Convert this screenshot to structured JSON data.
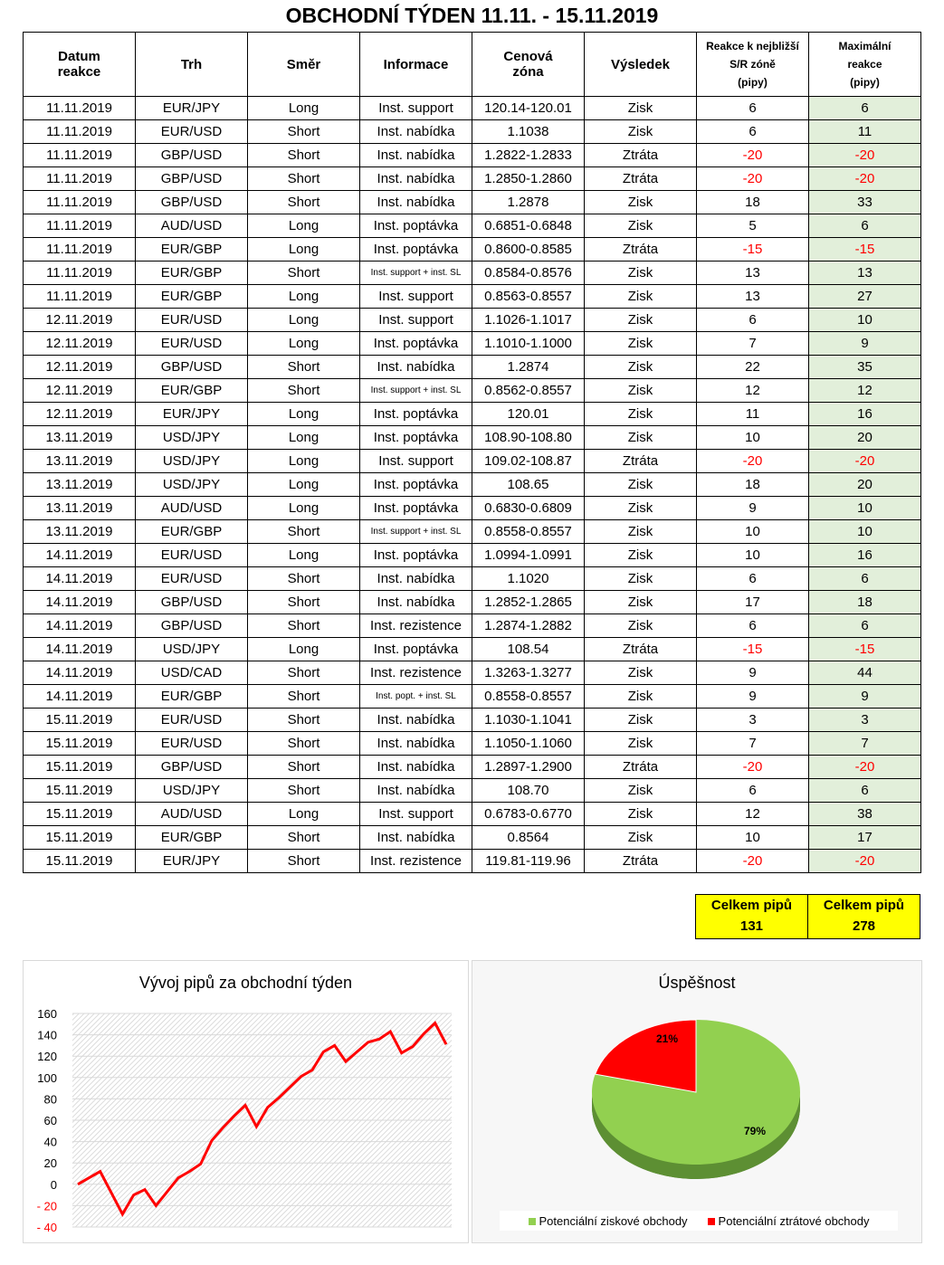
{
  "title": "OBCHODNÍ TÝDEN 11.11. - 15.11.2019",
  "headers": {
    "date": [
      "Datum",
      "reakce"
    ],
    "market": "Trh",
    "direction": "Směr",
    "info": "Informace",
    "zone": [
      "Cenová",
      "zóna"
    ],
    "result": "Výsledek",
    "reaction": [
      "Reakce k nejbližší",
      "S/R zóně",
      "(pipy)"
    ],
    "max": [
      "Maximální",
      "reakce",
      "(pipy)"
    ]
  },
  "rows": [
    [
      "11.11.2019",
      "EUR/JPY",
      "Long",
      "Inst. support",
      "120.14-120.01",
      "Zisk",
      "6",
      "6"
    ],
    [
      "11.11.2019",
      "EUR/USD",
      "Short",
      "Inst. nabídka",
      "1.1038",
      "Zisk",
      "6",
      "11"
    ],
    [
      "11.11.2019",
      "GBP/USD",
      "Short",
      "Inst. nabídka",
      "1.2822-1.2833",
      "Ztráta",
      "-20",
      "-20"
    ],
    [
      "11.11.2019",
      "GBP/USD",
      "Short",
      "Inst. nabídka",
      "1.2850-1.2860",
      "Ztráta",
      "-20",
      "-20"
    ],
    [
      "11.11.2019",
      "GBP/USD",
      "Short",
      "Inst. nabídka",
      "1.2878",
      "Zisk",
      "18",
      "33"
    ],
    [
      "11.11.2019",
      "AUD/USD",
      "Long",
      "Inst. poptávka",
      "0.6851-0.6848",
      "Zisk",
      "5",
      "6"
    ],
    [
      "11.11.2019",
      "EUR/GBP",
      "Long",
      "Inst. poptávka",
      "0.8600-0.8585",
      "Ztráta",
      "-15",
      "-15"
    ],
    [
      "11.11.2019",
      "EUR/GBP",
      "Short",
      "Inst. support + inst. SL",
      "0.8584-0.8576",
      "Zisk",
      "13",
      "13"
    ],
    [
      "11.11.2019",
      "EUR/GBP",
      "Long",
      "Inst. support",
      "0.8563-0.8557",
      "Zisk",
      "13",
      "27"
    ],
    [
      "12.11.2019",
      "EUR/USD",
      "Long",
      "Inst. support",
      "1.1026-1.1017",
      "Zisk",
      "6",
      "10"
    ],
    [
      "12.11.2019",
      "EUR/USD",
      "Long",
      "Inst. poptávka",
      "1.1010-1.1000",
      "Zisk",
      "7",
      "9"
    ],
    [
      "12.11.2019",
      "GBP/USD",
      "Short",
      "Inst. nabídka",
      "1.2874",
      "Zisk",
      "22",
      "35"
    ],
    [
      "12.11.2019",
      "EUR/GBP",
      "Short",
      "Inst. support + inst. SL",
      "0.8562-0.8557",
      "Zisk",
      "12",
      "12"
    ],
    [
      "12.11.2019",
      "EUR/JPY",
      "Long",
      "Inst. poptávka",
      "120.01",
      "Zisk",
      "11",
      "16"
    ],
    [
      "13.11.2019",
      "USD/JPY",
      "Long",
      "Inst. poptávka",
      "108.90-108.80",
      "Zisk",
      "10",
      "20"
    ],
    [
      "13.11.2019",
      "USD/JPY",
      "Long",
      "Inst. support",
      "109.02-108.87",
      "Ztráta",
      "-20",
      "-20"
    ],
    [
      "13.11.2019",
      "USD/JPY",
      "Long",
      "Inst. poptávka",
      "108.65",
      "Zisk",
      "18",
      "20"
    ],
    [
      "13.11.2019",
      "AUD/USD",
      "Long",
      "Inst. poptávka",
      "0.6830-0.6809",
      "Zisk",
      "9",
      "10"
    ],
    [
      "13.11.2019",
      "EUR/GBP",
      "Short",
      "Inst. support + inst. SL",
      "0.8558-0.8557",
      "Zisk",
      "10",
      "10"
    ],
    [
      "14.11.2019",
      "EUR/USD",
      "Long",
      "Inst. poptávka",
      "1.0994-1.0991",
      "Zisk",
      "10",
      "16"
    ],
    [
      "14.11.2019",
      "EUR/USD",
      "Short",
      "Inst. nabídka",
      "1.1020",
      "Zisk",
      "6",
      "6"
    ],
    [
      "14.11.2019",
      "GBP/USD",
      "Short",
      "Inst. nabídka",
      "1.2852-1.2865",
      "Zisk",
      "17",
      "18"
    ],
    [
      "14.11.2019",
      "GBP/USD",
      "Short",
      "Inst. rezistence",
      "1.2874-1.2882",
      "Zisk",
      "6",
      "6"
    ],
    [
      "14.11.2019",
      "USD/JPY",
      "Long",
      "Inst. poptávka",
      "108.54",
      "Ztráta",
      "-15",
      "-15"
    ],
    [
      "14.11.2019",
      "USD/CAD",
      "Short",
      "Inst. rezistence",
      "1.3263-1.3277",
      "Zisk",
      "9",
      "44"
    ],
    [
      "14.11.2019",
      "EUR/GBP",
      "Short",
      "Inst. popt. + inst. SL",
      "0.8558-0.8557",
      "Zisk",
      "9",
      "9"
    ],
    [
      "15.11.2019",
      "EUR/USD",
      "Short",
      "Inst. nabídka",
      "1.1030-1.1041",
      "Zisk",
      "3",
      "3"
    ],
    [
      "15.11.2019",
      "EUR/USD",
      "Short",
      "Inst. nabídka",
      "1.1050-1.1060",
      "Zisk",
      "7",
      "7"
    ],
    [
      "15.11.2019",
      "GBP/USD",
      "Short",
      "Inst. nabídka",
      "1.2897-1.2900",
      "Ztráta",
      "-20",
      "-20"
    ],
    [
      "15.11.2019",
      "USD/JPY",
      "Short",
      "Inst. nabídka",
      "108.70",
      "Zisk",
      "6",
      "6"
    ],
    [
      "15.11.2019",
      "AUD/USD",
      "Long",
      "Inst. support",
      "0.6783-0.6770",
      "Zisk",
      "12",
      "38"
    ],
    [
      "15.11.2019",
      "EUR/GBP",
      "Short",
      "Inst. nabídka",
      "0.8564",
      "Zisk",
      "10",
      "17"
    ],
    [
      "15.11.2019",
      "EUR/JPY",
      "Short",
      "Inst. rezistence",
      "119.81-119.96",
      "Ztráta",
      "-20",
      "-20"
    ]
  ],
  "totals": [
    {
      "label": "Celkem pipů",
      "value": "131"
    },
    {
      "label": "Celkem pipů",
      "value": "278"
    }
  ],
  "colors": {
    "loss": "#ff0000",
    "max_bg": "#e2efda",
    "totals_bg": "#ffff00",
    "win": "#92d050"
  },
  "chart_data": [
    {
      "type": "line",
      "title": "Vývoj pipů za obchodní týden",
      "ylim": [
        -40,
        160
      ],
      "yticks": [
        "160",
        "140",
        "120",
        "100",
        "80",
        "60",
        "40",
        "20",
        "0",
        "- 20",
        "- 40"
      ],
      "values": [
        0,
        6,
        12,
        -8,
        -28,
        -10,
        -5,
        -20,
        -7,
        6,
        12,
        19,
        41,
        53,
        64,
        74,
        54,
        72,
        81,
        91,
        101,
        107,
        124,
        130,
        115,
        124,
        133,
        136,
        143,
        123,
        129,
        141,
        151,
        131
      ]
    },
    {
      "type": "pie",
      "title": "Úspěšnost",
      "slices": [
        {
          "name": "Potenciální ziskové obchody",
          "value": 79,
          "label": "79%"
        },
        {
          "name": "Potenciální ztrátové obchody",
          "value": 21,
          "label": "21%"
        }
      ]
    }
  ]
}
